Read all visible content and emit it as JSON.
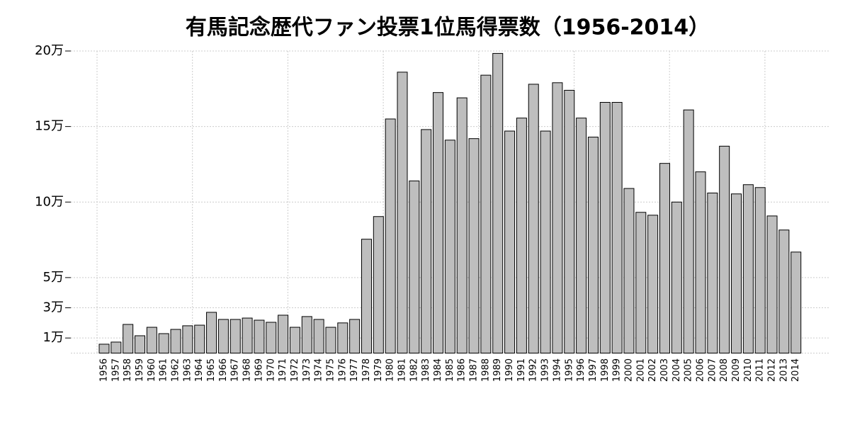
{
  "chart_data": {
    "type": "bar",
    "title": "有馬記念歴代ファン投票1位馬得票数（1956-2014）",
    "categories": [
      "1956",
      "1957",
      "1958",
      "1959",
      "1960",
      "1961",
      "1962",
      "1963",
      "1964",
      "1965",
      "1966",
      "1967",
      "1968",
      "1969",
      "1970",
      "1971",
      "1972",
      "1973",
      "1974",
      "1975",
      "1976",
      "1977",
      "1978",
      "1979",
      "1980",
      "1981",
      "1982",
      "1983",
      "1984",
      "1985",
      "1986",
      "1987",
      "1988",
      "1989",
      "1990",
      "1991",
      "1992",
      "1993",
      "1994",
      "1995",
      "1996",
      "1997",
      "1998",
      "1999",
      "2000",
      "2001",
      "2002",
      "2003",
      "2004",
      "2005",
      "2006",
      "2007",
      "2008",
      "2009",
      "2010",
      "2011",
      "2012",
      "2013",
      "2014"
    ],
    "values": [
      0.59,
      0.73,
      1.9,
      1.15,
      1.71,
      1.29,
      1.57,
      1.81,
      1.85,
      2.7,
      2.23,
      2.23,
      2.32,
      2.18,
      2.04,
      2.51,
      1.71,
      2.42,
      2.23,
      1.71,
      2.0,
      2.23,
      7.54,
      9.04,
      15.5,
      18.6,
      11.4,
      14.8,
      17.25,
      14.1,
      16.9,
      14.2,
      18.4,
      19.84,
      14.7,
      15.56,
      17.8,
      14.7,
      17.9,
      17.4,
      15.56,
      14.3,
      16.6,
      16.6,
      10.9,
      9.32,
      9.13,
      12.56,
      10.0,
      16.1,
      12.0,
      10.6,
      13.7,
      10.54,
      11.15,
      10.96,
      9.08,
      8.15,
      6.69
    ],
    "color": "#bebebe",
    "ylim": [
      0,
      20
    ],
    "yticks": [
      {
        "value": 1,
        "label": "1万"
      },
      {
        "value": 3,
        "label": "3万"
      },
      {
        "value": 5,
        "label": "5万"
      },
      {
        "value": 10,
        "label": "10万"
      },
      {
        "value": 15,
        "label": "15万"
      },
      {
        "value": 20,
        "label": "20万"
      }
    ],
    "grid": true
  }
}
